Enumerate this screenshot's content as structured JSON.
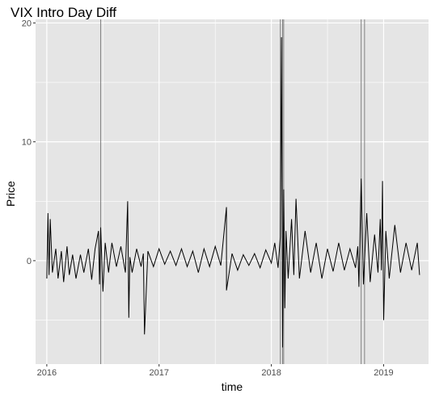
{
  "chart_data": {
    "type": "line",
    "title": "VIX Intro Day Diff",
    "xlabel": "time",
    "ylabel": "Price",
    "x_ticks": [
      "2016",
      "2017",
      "2018",
      "2019"
    ],
    "y_ticks": [
      "0",
      "10",
      "20"
    ],
    "x_tick_values": [
      2016,
      2017,
      2018,
      2019
    ],
    "y_tick_values": [
      0,
      10,
      20
    ],
    "xlim": [
      2015.9,
      2019.4
    ],
    "ylim": [
      -8.7,
      20.3
    ],
    "grid": true,
    "background": "#e5e5e5",
    "grid_color": "#ffffff",
    "line_color": "#000000",
    "vline_color": "#808080",
    "vertical_lines": [
      2016.48,
      2018.08,
      2018.1,
      2018.11,
      2018.8,
      2018.83
    ],
    "series": [
      {
        "x": [
          2016.0,
          2016.01,
          2016.02,
          2016.03,
          2016.05,
          2016.08,
          2016.1,
          2016.13,
          2016.15,
          2016.18,
          2016.2,
          2016.23,
          2016.26,
          2016.3,
          2016.33,
          2016.37,
          2016.4,
          2016.43,
          2016.46,
          2016.47,
          2016.48,
          2016.5,
          2016.52,
          2016.55,
          2016.58,
          2016.62,
          2016.66,
          2016.7,
          2016.72,
          2016.73,
          2016.74,
          2016.76,
          2016.8,
          2016.84,
          2016.86,
          2016.87,
          2016.9,
          2016.95,
          2017.0,
          2017.05,
          2017.1,
          2017.15,
          2017.2,
          2017.25,
          2017.3,
          2017.35,
          2017.4,
          2017.45,
          2017.5,
          2017.55,
          2017.6,
          2017.6,
          2017.65,
          2017.7,
          2017.75,
          2017.8,
          2017.85,
          2017.9,
          2017.95,
          2018.0,
          2018.03,
          2018.06,
          2018.08,
          2018.09,
          2018.1,
          2018.11,
          2018.12,
          2018.13,
          2018.15,
          2018.18,
          2018.2,
          2018.22,
          2018.25,
          2018.3,
          2018.35,
          2018.4,
          2018.45,
          2018.5,
          2018.55,
          2018.6,
          2018.65,
          2018.7,
          2018.75,
          2018.77,
          2018.78,
          2018.8,
          2018.82,
          2018.85,
          2018.88,
          2018.92,
          2018.95,
          2018.97,
          2018.98,
          2018.99,
          2019.0,
          2019.02,
          2019.05,
          2019.1,
          2019.15,
          2019.2,
          2019.25,
          2019.3,
          2019.32
        ],
        "y": [
          -1.5,
          4.0,
          -1.2,
          3.5,
          -1.0,
          1.0,
          -1.5,
          0.8,
          -1.8,
          1.2,
          -1.2,
          0.5,
          -1.5,
          0.5,
          -1.0,
          1.0,
          -1.6,
          1.0,
          2.5,
          -2.0,
          2.8,
          -2.6,
          1.5,
          -1.0,
          1.5,
          -0.5,
          1.2,
          -1.0,
          5.0,
          -4.8,
          0.3,
          -1.0,
          1.0,
          -0.5,
          0.6,
          -6.2,
          0.8,
          -0.5,
          1.0,
          -0.3,
          0.8,
          -0.4,
          1.0,
          -0.5,
          0.8,
          -1.0,
          1.0,
          -0.5,
          1.2,
          -0.4,
          4.5,
          -2.5,
          0.6,
          -0.8,
          0.5,
          -0.4,
          0.6,
          -0.6,
          0.9,
          -0.2,
          1.5,
          -0.6,
          2.0,
          18.8,
          -7.3,
          6.0,
          -4.0,
          2.5,
          -1.5,
          3.5,
          -1.2,
          5.2,
          -1.5,
          2.5,
          -1.0,
          1.5,
          -1.5,
          1.0,
          -0.9,
          1.5,
          -0.8,
          1.0,
          -0.6,
          1.2,
          -2.2,
          6.9,
          -2.0,
          4.0,
          -1.8,
          2.2,
          -1.0,
          3.5,
          -0.8,
          6.7,
          -5.0,
          2.5,
          -1.5,
          3.0,
          -1.0,
          1.5,
          -0.8,
          1.5,
          -1.2
        ]
      }
    ]
  }
}
